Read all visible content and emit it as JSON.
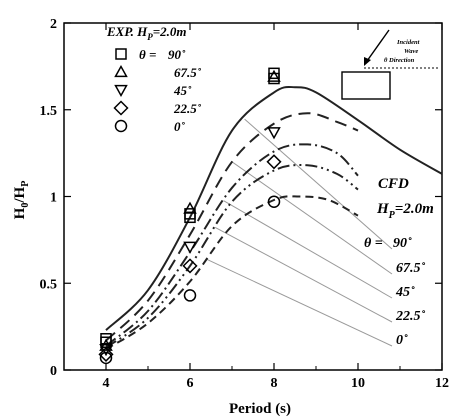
{
  "chart_data": {
    "type": "line",
    "xlabel": "Period (s)",
    "ylabel": "H",
    "ylabel_sub_num": "0",
    "ylabel_sub_den": "P",
    "x_ticks": [
      {
        "v": 4,
        "label": "4"
      },
      {
        "v": 6,
        "label": "6"
      },
      {
        "v": 8,
        "label": "8"
      },
      {
        "v": 10,
        "label": "10"
      },
      {
        "v": 12,
        "label": "12"
      }
    ],
    "y_ticks": [
      {
        "v": 0,
        "label": "0"
      },
      {
        "v": 0.5,
        "label": "0.5"
      },
      {
        "v": 1,
        "label": "1"
      },
      {
        "v": 1.5,
        "label": "1.5"
      },
      {
        "v": 2,
        "label": "2"
      }
    ],
    "xlim": [
      3,
      12
    ],
    "ylim": [
      0,
      2
    ],
    "grid": false,
    "exp_legend": {
      "title_pre": "EXP. H",
      "title_sub": "P",
      "title_post": "=2.0m",
      "theta_prefix": "θ =",
      "entries": [
        "90˚",
        "67.5˚",
        "45˚",
        "22.5˚",
        "0˚"
      ]
    },
    "cfd_legend": {
      "title": "CFD",
      "subtitle_pre": "H",
      "subtitle_sub": "P",
      "subtitle_post": "=2.0m",
      "theta_prefix": "θ =",
      "entries": [
        "90˚",
        "67.5˚",
        "45˚",
        "22.5˚",
        "0˚"
      ]
    },
    "inset_text": [
      "Incident",
      "Wave",
      "θ  Direction"
    ],
    "series": [
      {
        "name": "90˚",
        "marker": "square",
        "dash": "",
        "line_points": [
          [
            4,
            0.23
          ],
          [
            5,
            0.46
          ],
          [
            6,
            0.88
          ],
          [
            7,
            1.38
          ],
          [
            8,
            1.6
          ],
          [
            8.5,
            1.63
          ],
          [
            9,
            1.6
          ],
          [
            10,
            1.44
          ],
          [
            11,
            1.27
          ],
          [
            12,
            1.13
          ]
        ],
        "exp_points": [
          [
            4,
            0.18
          ],
          [
            4,
            0.16
          ],
          [
            6,
            0.9
          ],
          [
            6,
            0.88
          ],
          [
            8,
            1.71
          ],
          [
            8,
            1.68
          ]
        ]
      },
      {
        "name": "67.5˚",
        "marker": "triangle-up",
        "dash": "12 7",
        "line_points": [
          [
            4,
            0.17
          ],
          [
            5,
            0.4
          ],
          [
            6,
            0.78
          ],
          [
            7,
            1.2
          ],
          [
            8,
            1.42
          ],
          [
            8.8,
            1.48
          ],
          [
            9.5,
            1.43
          ],
          [
            10,
            1.38
          ]
        ],
        "exp_points": [
          [
            4,
            0.14
          ],
          [
            6,
            0.93
          ],
          [
            8,
            1.69
          ]
        ]
      },
      {
        "name": "45˚",
        "marker": "triangle-down",
        "dash": "12 4 2 4",
        "line_points": [
          [
            4,
            0.14
          ],
          [
            5,
            0.34
          ],
          [
            6,
            0.68
          ],
          [
            7,
            1.05
          ],
          [
            8,
            1.26
          ],
          [
            8.8,
            1.3
          ],
          [
            9.5,
            1.25
          ],
          [
            10,
            1.12
          ]
        ],
        "exp_points": [
          [
            4,
            0.12
          ],
          [
            6,
            0.71
          ],
          [
            8,
            1.37
          ]
        ]
      },
      {
        "name": "22.5˚",
        "marker": "diamond",
        "dash": "12 4 2 4 2 4",
        "line_points": [
          [
            4,
            0.13
          ],
          [
            5,
            0.3
          ],
          [
            6,
            0.6
          ],
          [
            7,
            0.97
          ],
          [
            8,
            1.15
          ],
          [
            8.8,
            1.18
          ],
          [
            9.5,
            1.13
          ],
          [
            10,
            1.04
          ]
        ],
        "exp_points": [
          [
            4,
            0.09
          ],
          [
            6,
            0.6
          ],
          [
            8,
            1.2
          ]
        ]
      },
      {
        "name": "0˚",
        "marker": "circle",
        "dash": "8 5",
        "line_points": [
          [
            4,
            0.12
          ],
          [
            5,
            0.27
          ],
          [
            6,
            0.51
          ],
          [
            7,
            0.83
          ],
          [
            8,
            0.98
          ],
          [
            8.6,
            1.0
          ],
          [
            9.3,
            0.98
          ],
          [
            10,
            0.89
          ]
        ],
        "exp_points": [
          [
            4,
            0.07
          ],
          [
            6,
            0.43
          ],
          [
            8,
            0.97
          ]
        ]
      }
    ],
    "colors": {
      "axis": "#000000",
      "line": "#222222",
      "leader": "#9a9a9a",
      "background": "#ffffff"
    }
  }
}
